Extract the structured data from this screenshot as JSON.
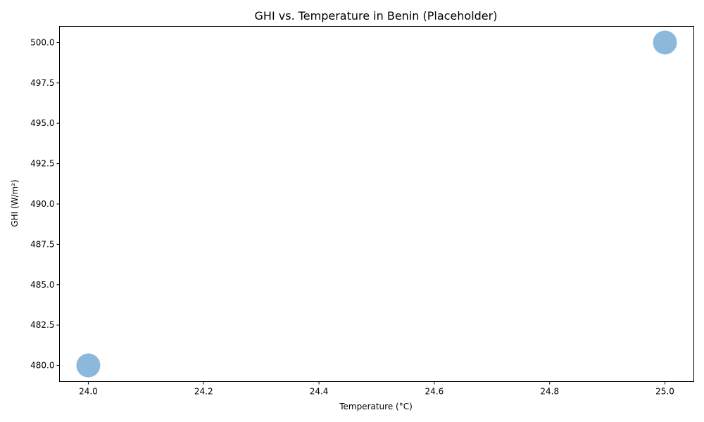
{
  "chart_data": {
    "type": "scatter",
    "title": "GHI vs. Temperature in Benin (Placeholder)",
    "xlabel": "Temperature (°C)",
    "ylabel": "GHI (W/m²)",
    "xlim": [
      23.95,
      25.05
    ],
    "ylim": [
      479,
      501
    ],
    "x_ticks": [
      "24.0",
      "24.2",
      "24.4",
      "24.6",
      "24.8",
      "25.0"
    ],
    "y_ticks": [
      "480.0",
      "482.5",
      "485.0",
      "487.5",
      "490.0",
      "492.5",
      "495.0",
      "497.5",
      "500.0"
    ],
    "points": [
      {
        "x": 24.0,
        "y": 480.0
      },
      {
        "x": 25.0,
        "y": 500.0
      }
    ],
    "marker_color": "#7fb0d8",
    "marker_opacity": 0.9,
    "grid": false,
    "legend": false
  }
}
